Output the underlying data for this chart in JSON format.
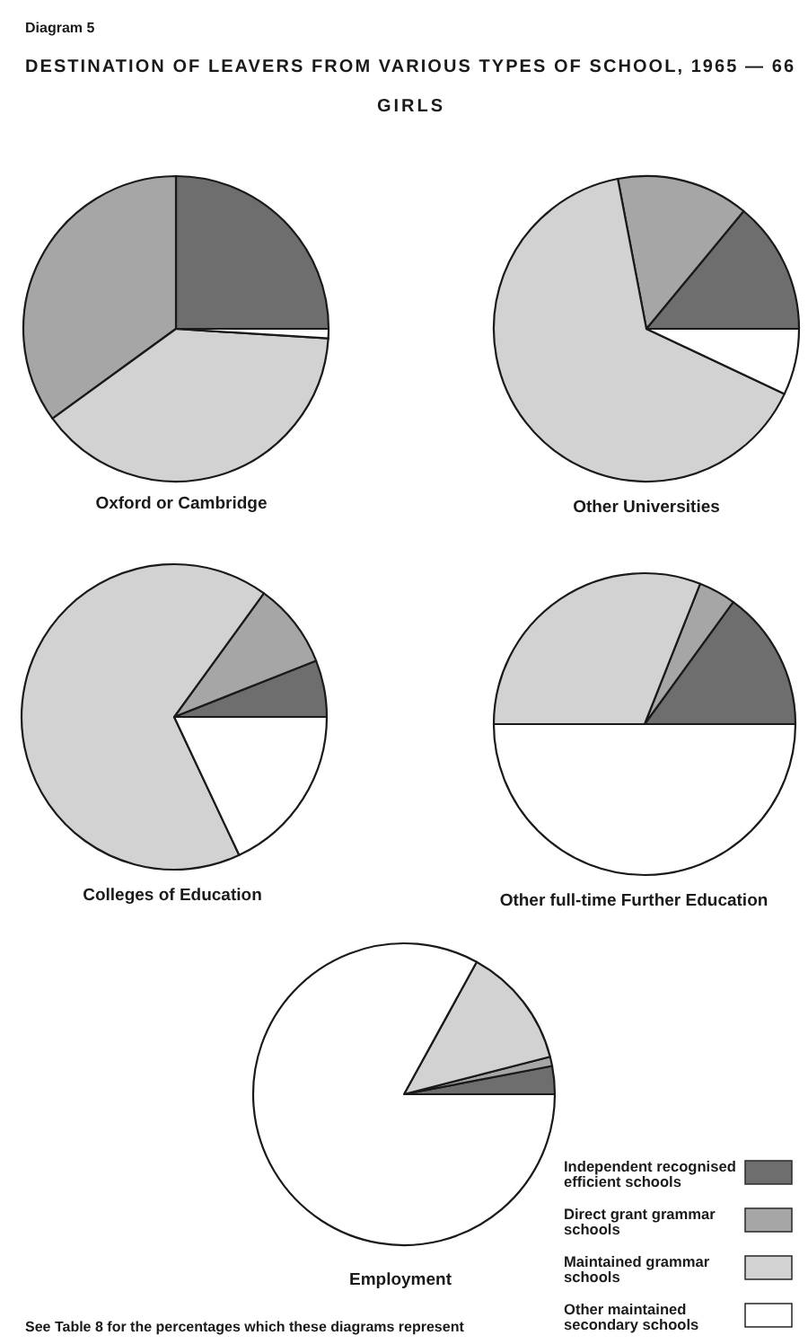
{
  "chart_data": [
    {
      "type": "other",
      "title": "DESTINATION OF LEAVERS FROM VARIOUS TYPES OF SCHOOL, 1965 — 66",
      "subtitle": "GIRLS",
      "annotations": [
        "Diagram 5",
        "See Table 8 for the percentages which these diagrams represent"
      ]
    },
    {
      "type": "pie",
      "title": "Oxford or Cambridge",
      "categories": [
        null,
        null,
        null,
        null
      ],
      "values": [
        25,
        35,
        39,
        1
      ],
      "colors": [
        "#6e6e6e",
        "#a6a6a6",
        "#d2d2d2",
        "#ffffff"
      ]
    },
    {
      "type": "pie",
      "title": "Other Universities",
      "categories": [
        null,
        null,
        null,
        null
      ],
      "values": [
        14,
        14,
        65,
        7
      ],
      "colors": [
        "#6e6e6e",
        "#a6a6a6",
        "#d2d2d2",
        "#ffffff"
      ]
    },
    {
      "type": "pie",
      "title": "Colleges of Education",
      "categories": [
        null,
        null,
        null,
        null
      ],
      "values": [
        6,
        9,
        67,
        18
      ],
      "colors": [
        "#6e6e6e",
        "#a6a6a6",
        "#d2d2d2",
        "#ffffff"
      ]
    },
    {
      "type": "pie",
      "title": "Other full-time Further Education",
      "categories": [
        null,
        null,
        null,
        null
      ],
      "values": [
        15,
        4,
        31,
        50
      ],
      "colors": [
        "#6e6e6e",
        "#a6a6a6",
        "#d2d2d2",
        "#ffffff"
      ]
    },
    {
      "type": "pie",
      "title": "Employment",
      "categories": [
        "Independent recognised efficient schools",
        "Direct grant grammar schools",
        "Maintained grammar schools",
        "Other maintained secondary schools"
      ],
      "values": [
        3,
        1,
        13,
        83
      ],
      "colors": [
        "#6e6e6e",
        "#a6a6a6",
        "#d2d2d2",
        "#ffffff"
      ],
      "legend": "bottom right"
    }
  ]
}
